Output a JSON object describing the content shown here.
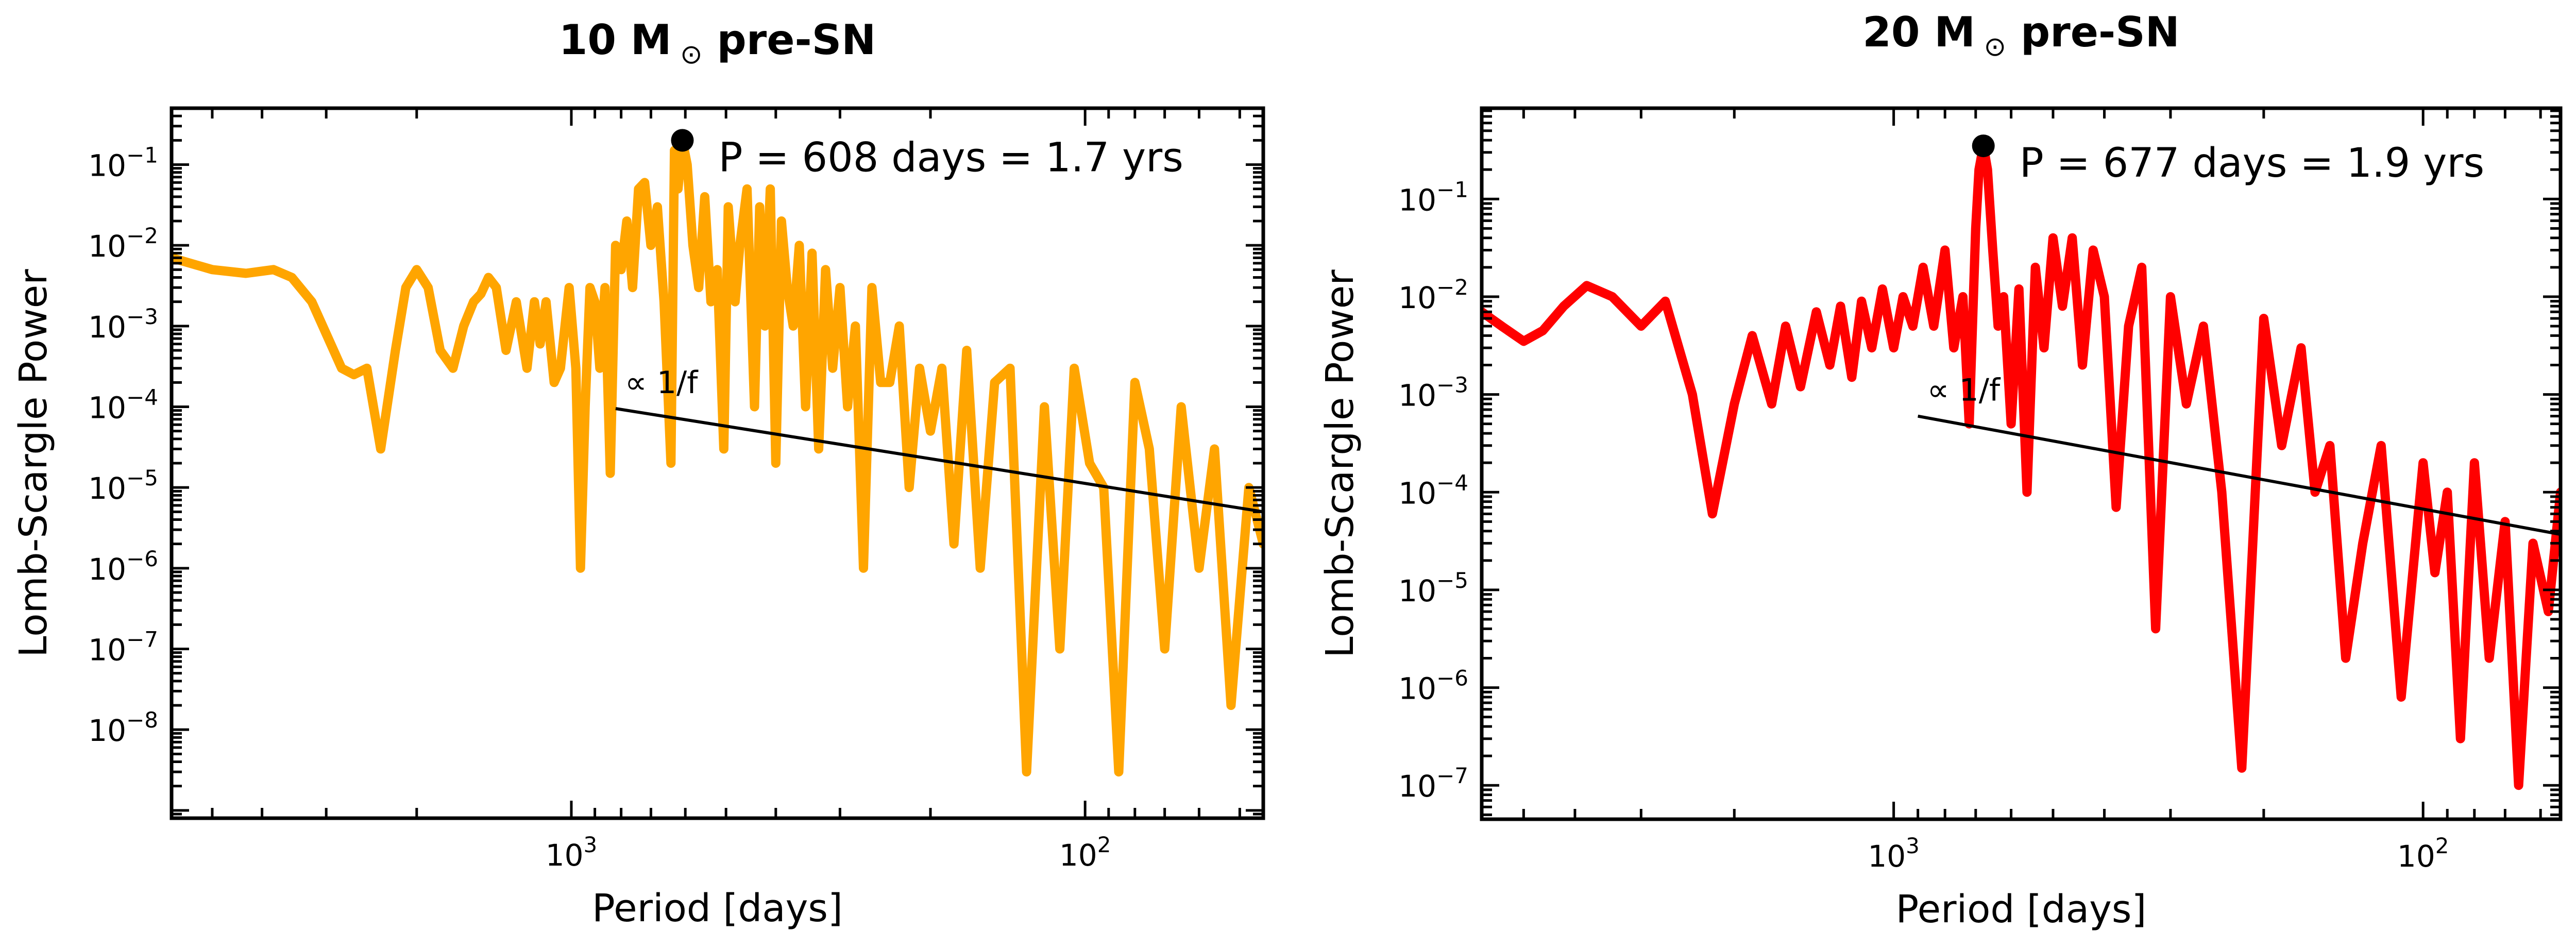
{
  "chart_data": [
    {
      "type": "line",
      "title": "10 M⊙ pre-SN",
      "title_parts": {
        "mass": "10 M",
        "symbol": "⊙",
        "suffix": "pre-SN"
      },
      "xlabel": "Period [days]",
      "ylabel": "Lomb-Scargle Power",
      "xscale": "log",
      "yscale": "log",
      "x_inverted": true,
      "xlim": [
        6000,
        45
      ],
      "ylim": [
        8e-10,
        0.5
      ],
      "x_tick_labels": [
        {
          "value": 1000,
          "base": "10",
          "exp": "3"
        },
        {
          "value": 100,
          "base": "10",
          "exp": "2"
        }
      ],
      "y_tick_labels": [
        {
          "value": 0.1,
          "base": "10",
          "exp": "−1"
        },
        {
          "value": 0.01,
          "base": "10",
          "exp": "−2"
        },
        {
          "value": 0.001,
          "base": "10",
          "exp": "−3"
        },
        {
          "value": 0.0001,
          "base": "10",
          "exp": "−4"
        },
        {
          "value": 1e-05,
          "base": "10",
          "exp": "−5"
        },
        {
          "value": 1e-06,
          "base": "10",
          "exp": "−6"
        },
        {
          "value": 1e-07,
          "base": "10",
          "exp": "−7"
        },
        {
          "value": 1e-08,
          "base": "10",
          "exp": "−8"
        }
      ],
      "series": [
        {
          "name": "power spectrum",
          "color": "#FFA500",
          "period": [
            6000,
            5000,
            4300,
            3800,
            3500,
            3200,
            3000,
            2800,
            2650,
            2500,
            2350,
            2200,
            2100,
            2000,
            1900,
            1800,
            1700,
            1620,
            1550,
            1500,
            1450,
            1400,
            1340,
            1280,
            1220,
            1180,
            1150,
            1120,
            1080,
            1050,
            1010,
            980,
            960,
            940,
            920,
            900,
            880,
            860,
            840,
            820,
            800,
            780,
            760,
            740,
            720,
            700,
            680,
            660,
            640,
            630,
            620,
            608,
            595,
            580,
            565,
            550,
            535,
            520,
            505,
            495,
            480,
            470,
            455,
            440,
            430,
            420,
            410,
            400,
            390,
            380,
            370,
            360,
            350,
            340,
            330,
            320,
            310,
            300,
            290,
            280,
            270,
            260,
            250,
            240,
            230,
            220,
            210,
            200,
            190,
            180,
            170,
            160,
            150,
            140,
            130,
            120,
            112,
            105,
            98,
            92,
            86,
            80,
            75,
            70,
            65,
            60,
            56,
            52,
            48,
            45
          ],
          "power": [
            0.007,
            0.005,
            0.0045,
            0.005,
            0.004,
            0.002,
            0.0008,
            0.0003,
            0.00025,
            0.0003,
            3e-05,
            0.0005,
            0.003,
            0.005,
            0.003,
            0.0005,
            0.0003,
            0.001,
            0.002,
            0.0025,
            0.004,
            0.003,
            0.0005,
            0.002,
            0.0003,
            0.002,
            0.0006,
            0.002,
            0.0002,
            0.0003,
            0.003,
            0.0003,
            1e-06,
            0.0001,
            0.003,
            0.002,
            0.0003,
            0.003,
            1.5e-05,
            0.01,
            0.005,
            0.02,
            0.003,
            0.05,
            0.06,
            0.01,
            0.03,
            0.002,
            2e-05,
            0.15,
            0.05,
            0.2,
            0.1,
            0.01,
            0.003,
            0.04,
            0.002,
            0.005,
            3e-05,
            0.03,
            0.002,
            0.01,
            0.05,
            0.0001,
            0.03,
            0.001,
            0.05,
            2e-05,
            0.02,
            0.003,
            0.001,
            0.01,
            0.0001,
            0.008,
            3e-05,
            0.005,
            0.0003,
            0.003,
            0.0001,
            0.001,
            1e-06,
            0.003,
            0.0002,
            0.0002,
            0.001,
            1e-05,
            0.0003,
            5e-05,
            0.0003,
            2e-06,
            0.0005,
            1e-06,
            0.0002,
            0.0003,
            3e-09,
            0.0001,
            1e-07,
            0.0003,
            2e-05,
            1e-05,
            3e-09,
            0.0002,
            3e-05,
            1e-07,
            0.0001,
            1e-06,
            3e-05,
            2e-08,
            1e-05,
            2e-06
          ]
        }
      ],
      "peak": {
        "period": 608,
        "power": 0.2,
        "label": "P = 608 days = 1.7 yrs",
        "marker_color": "#000000"
      },
      "slope_line": {
        "label": "∝ 1/f",
        "from": [
          820,
          9.5e-05
        ],
        "to": [
          45,
          5e-06
        ],
        "color": "#000000"
      }
    },
    {
      "type": "line",
      "title": "20 M⊙ pre-SN",
      "title_parts": {
        "mass": "20 M",
        "symbol": "⊙",
        "suffix": "pre-SN"
      },
      "xlabel": "Period [days]",
      "ylabel": "Lomb-Scargle Power",
      "xscale": "log",
      "yscale": "log",
      "x_inverted": true,
      "xlim": [
        6000,
        55
      ],
      "ylim": [
        4.5e-08,
        0.85
      ],
      "x_tick_labels": [
        {
          "value": 1000,
          "base": "10",
          "exp": "3"
        },
        {
          "value": 100,
          "base": "10",
          "exp": "2"
        }
      ],
      "y_tick_labels": [
        {
          "value": 0.1,
          "base": "10",
          "exp": "−1"
        },
        {
          "value": 0.01,
          "base": "10",
          "exp": "−2"
        },
        {
          "value": 0.001,
          "base": "10",
          "exp": "−3"
        },
        {
          "value": 0.0001,
          "base": "10",
          "exp": "−4"
        },
        {
          "value": 1e-05,
          "base": "10",
          "exp": "−5"
        },
        {
          "value": 1e-06,
          "base": "10",
          "exp": "−6"
        },
        {
          "value": 1e-07,
          "base": "10",
          "exp": "−7"
        }
      ],
      "series": [
        {
          "name": "power spectrum",
          "color": "#FF0000",
          "period": [
            6000,
            5500,
            5000,
            4600,
            4200,
            3800,
            3400,
            3000,
            2700,
            2400,
            2200,
            2000,
            1850,
            1700,
            1600,
            1500,
            1400,
            1320,
            1260,
            1200,
            1150,
            1100,
            1050,
            1000,
            960,
            920,
            880,
            840,
            800,
            770,
            740,
            720,
            700,
            690,
            677,
            665,
            650,
            635,
            620,
            600,
            580,
            560,
            540,
            520,
            500,
            480,
            460,
            440,
            420,
            400,
            380,
            360,
            340,
            320,
            300,
            280,
            260,
            240,
            220,
            200,
            185,
            170,
            160,
            150,
            140,
            130,
            120,
            110,
            100,
            95,
            90,
            85,
            80,
            75,
            70,
            66,
            62,
            58,
            55
          ],
          "power": [
            0.007,
            0.005,
            0.0035,
            0.0045,
            0.008,
            0.013,
            0.01,
            0.005,
            0.009,
            0.001,
            6e-05,
            0.0008,
            0.004,
            0.0008,
            0.005,
            0.0012,
            0.007,
            0.002,
            0.008,
            0.0015,
            0.009,
            0.003,
            0.012,
            0.003,
            0.01,
            0.005,
            0.02,
            0.005,
            0.03,
            0.003,
            0.01,
            0.0005,
            0.05,
            0.2,
            0.35,
            0.2,
            0.03,
            0.005,
            0.01,
            0.0005,
            0.012,
            0.0001,
            0.02,
            0.003,
            0.04,
            0.008,
            0.04,
            0.002,
            0.03,
            0.01,
            7e-05,
            0.005,
            0.02,
            4e-06,
            0.01,
            0.0008,
            0.005,
            0.0001,
            1.5e-07,
            0.006,
            0.0003,
            0.003,
            0.0001,
            0.0003,
            2e-06,
            3e-05,
            0.0003,
            8e-07,
            0.0002,
            1.5e-05,
            0.0001,
            3e-07,
            0.0002,
            2e-06,
            5e-05,
            1e-07,
            3e-05,
            6e-06,
            0.0001
          ]
        }
      ],
      "peak": {
        "period": 677,
        "power": 0.35,
        "label": "P = 677 days = 1.9 yrs",
        "marker_color": "#000000"
      },
      "slope_line": {
        "label": "∝ 1/f",
        "from": [
          900,
          0.0006
        ],
        "to": [
          55,
          3.7e-05
        ],
        "color": "#000000"
      }
    }
  ]
}
